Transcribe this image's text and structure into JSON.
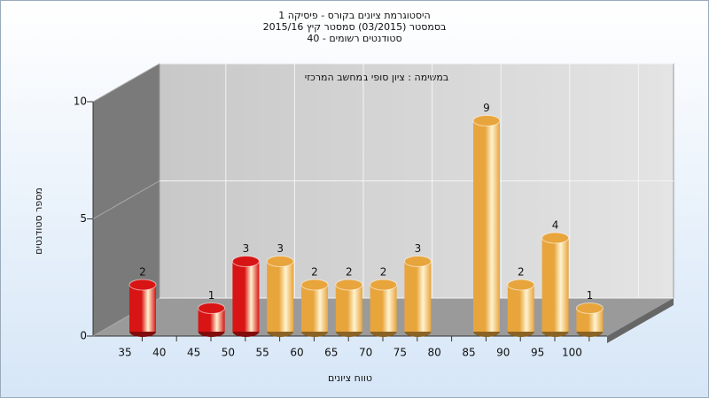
{
  "chart_data": {
    "type": "bar3d",
    "title": "היסטוגרמת ציונים בקורס - פיסיקה 1",
    "subtitle": "בסמסטר  (03/2015)  סמסטר קיץ 2015/16",
    "subtitle2": "סטודנטים רשומים - 40",
    "annotation": "במשימה : ציון סופי במחשב המרכזי",
    "x_label": "טווח ציונים",
    "y_label": "מספר סטודנטים",
    "categories": [
      "35",
      "40",
      "45",
      "50",
      "55",
      "60",
      "65",
      "70",
      "75",
      "80",
      "85",
      "90",
      "95",
      "100"
    ],
    "values": [
      2,
      0,
      1,
      3,
      3,
      2,
      2,
      2,
      3,
      0,
      9,
      2,
      4,
      1
    ],
    "colors": [
      "#d81414",
      "#d81414",
      "#d81414",
      "#d81414",
      "#e8a53c",
      "#e8a53c",
      "#e8a53c",
      "#e8a53c",
      "#e8a53c",
      "#e8a53c",
      "#e8a53c",
      "#e8a53c",
      "#e8a53c",
      "#e8a53c"
    ],
    "ylim": [
      0,
      10
    ],
    "yticks": [
      0,
      5,
      10
    ],
    "grid": true
  }
}
